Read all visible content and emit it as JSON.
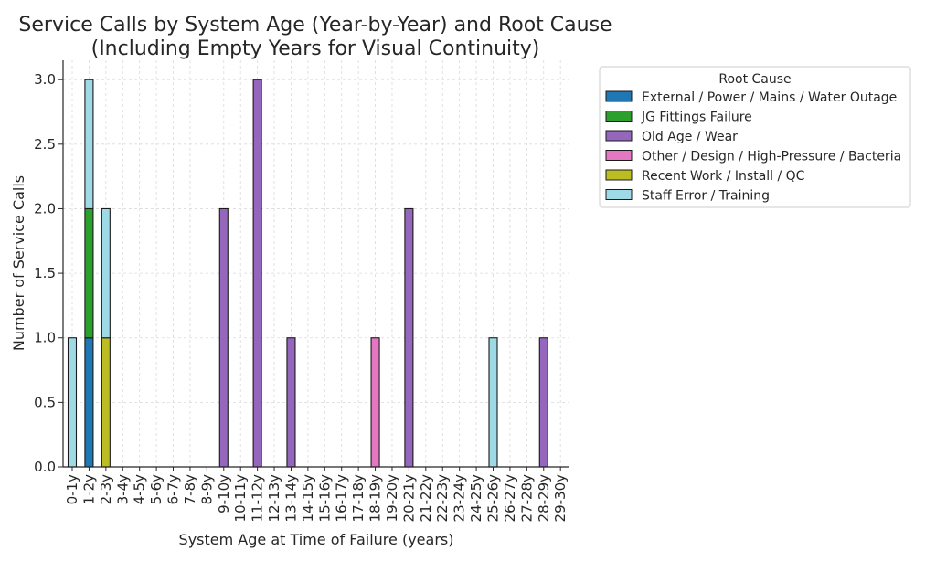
{
  "chart_data": {
    "type": "bar",
    "stacked": true,
    "title_lines": [
      "Service Calls by System Age (Year-by-Year) and Root Cause",
      "(Including Empty Years for Visual Continuity)"
    ],
    "xlabel": "System Age at Time of Failure (years)",
    "ylabel": "Number of Service Calls",
    "ylim": [
      0,
      3.15
    ],
    "yticks": [
      "0.0",
      "0.5",
      "1.0",
      "1.5",
      "2.0",
      "2.5",
      "3.0"
    ],
    "grid": true,
    "legend": {
      "title": "Root Cause",
      "placement": "outside-right"
    },
    "categories": [
      "0-1y",
      "1-2y",
      "2-3y",
      "3-4y",
      "4-5y",
      "5-6y",
      "6-7y",
      "7-8y",
      "8-9y",
      "9-10y",
      "10-11y",
      "11-12y",
      "12-13y",
      "13-14y",
      "14-15y",
      "15-16y",
      "16-17y",
      "17-18y",
      "18-19y",
      "19-20y",
      "20-21y",
      "21-22y",
      "22-23y",
      "23-24y",
      "24-25y",
      "25-26y",
      "26-27y",
      "27-28y",
      "28-29y",
      "29-30y"
    ],
    "series": [
      {
        "name": "External / Power / Mains / Water Outage",
        "color": "#1f77b4",
        "values": [
          0,
          1,
          0,
          0,
          0,
          0,
          0,
          0,
          0,
          0,
          0,
          0,
          0,
          0,
          0,
          0,
          0,
          0,
          0,
          0,
          0,
          0,
          0,
          0,
          0,
          0,
          0,
          0,
          0,
          0
        ]
      },
      {
        "name": "JG Fittings Failure",
        "color": "#2ca02c",
        "values": [
          0,
          1,
          0,
          0,
          0,
          0,
          0,
          0,
          0,
          0,
          0,
          0,
          0,
          0,
          0,
          0,
          0,
          0,
          0,
          0,
          0,
          0,
          0,
          0,
          0,
          0,
          0,
          0,
          0,
          0
        ]
      },
      {
        "name": "Old Age / Wear",
        "color": "#9467bd",
        "values": [
          0,
          0,
          0,
          0,
          0,
          0,
          0,
          0,
          0,
          2,
          0,
          3,
          0,
          1,
          0,
          0,
          0,
          0,
          0,
          0,
          2,
          0,
          0,
          0,
          0,
          0,
          0,
          0,
          1,
          0
        ]
      },
      {
        "name": "Other / Design / High-Pressure / Bacteria",
        "color": "#e377c2",
        "values": [
          0,
          0,
          0,
          0,
          0,
          0,
          0,
          0,
          0,
          0,
          0,
          0,
          0,
          0,
          0,
          0,
          0,
          0,
          1,
          0,
          0,
          0,
          0,
          0,
          0,
          0,
          0,
          0,
          0,
          0
        ]
      },
      {
        "name": "Recent Work / Install / QC",
        "color": "#bcbd22",
        "values": [
          0,
          0,
          1,
          0,
          0,
          0,
          0,
          0,
          0,
          0,
          0,
          0,
          0,
          0,
          0,
          0,
          0,
          0,
          0,
          0,
          0,
          0,
          0,
          0,
          0,
          0,
          0,
          0,
          0,
          0
        ]
      },
      {
        "name": "Staff Error / Training",
        "color": "#9edae5",
        "values": [
          1,
          1,
          1,
          0,
          0,
          0,
          0,
          0,
          0,
          0,
          0,
          0,
          0,
          0,
          0,
          0,
          0,
          0,
          0,
          0,
          0,
          0,
          0,
          0,
          0,
          1,
          0,
          0,
          0,
          0
        ]
      }
    ]
  }
}
